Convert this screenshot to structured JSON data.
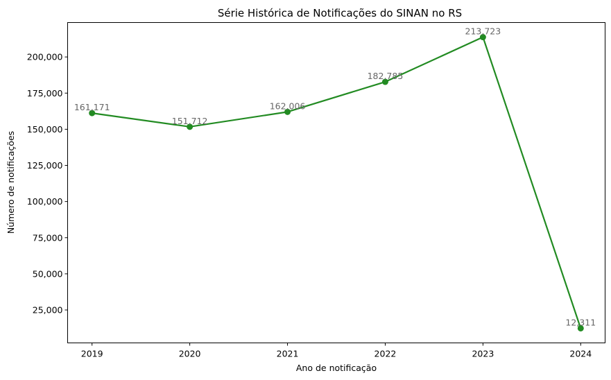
{
  "chart_data": {
    "type": "line",
    "title": "Série Histórica de Notificações do SINAN no RS",
    "xlabel": "Ano de notificação",
    "ylabel": "Número de notificações",
    "categories": [
      "2019",
      "2020",
      "2021",
      "2022",
      "2023",
      "2024"
    ],
    "series": [
      {
        "values": [
          161171,
          151712,
          162006,
          182785,
          213723,
          12311
        ],
        "data_labels": [
          "161,171",
          "151,712",
          "162,006",
          "182,785",
          "213,723",
          "12,311"
        ],
        "color": "#228B22"
      }
    ],
    "ylim": [
      2225,
      223809
    ],
    "yticks": [
      25000,
      50000,
      75000,
      100000,
      125000,
      150000,
      175000,
      200000
    ],
    "ytick_labels": [
      "25,000",
      "50,000",
      "75,000",
      "100,000",
      "125,000",
      "150,000",
      "175,000",
      "200,000"
    ],
    "grid": false,
    "legend": "none",
    "colors": {
      "axis": "#000000",
      "data_label": "#666666"
    }
  }
}
